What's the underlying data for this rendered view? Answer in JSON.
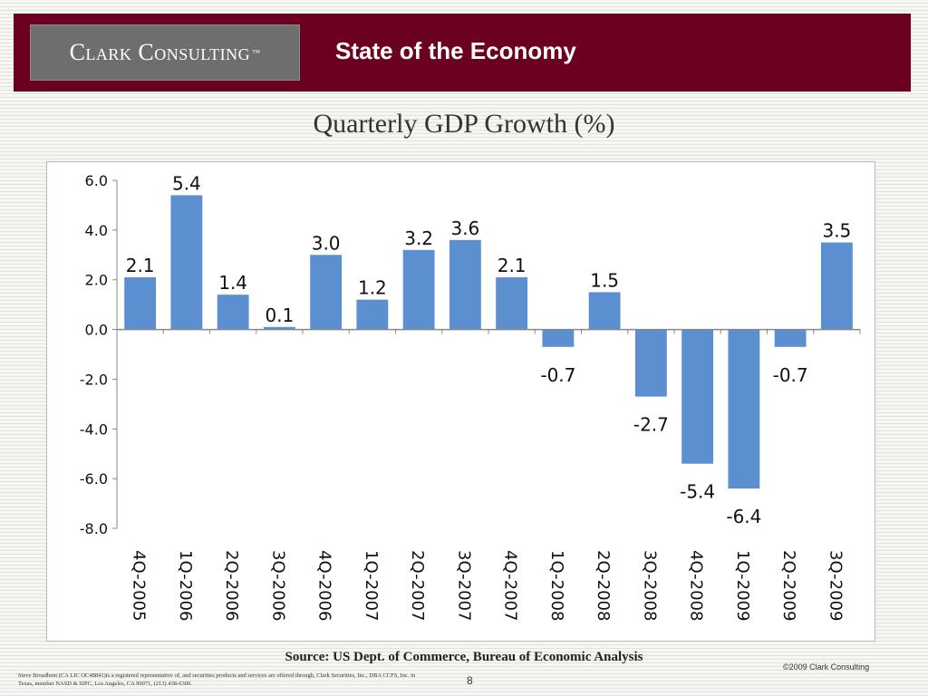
{
  "header": {
    "logo_text": "Clark Consulting",
    "logo_mark": "™",
    "title": "State of the Economy"
  },
  "chart_data": {
    "type": "bar",
    "title": "Quarterly GDP Growth (%)",
    "categories": [
      "4Q-2005",
      "1Q-2006",
      "2Q-2006",
      "3Q-2006",
      "4Q-2006",
      "1Q-2007",
      "2Q-2007",
      "3Q-2007",
      "4Q-2007",
      "1Q-2008",
      "2Q-2008",
      "3Q-2008",
      "4Q-2008",
      "1Q-2009",
      "2Q-2009",
      "3Q-2009"
    ],
    "values": [
      2.1,
      5.4,
      1.4,
      0.1,
      3.0,
      1.2,
      3.2,
      3.6,
      2.1,
      -0.7,
      1.5,
      -2.7,
      -5.4,
      -6.4,
      -0.7,
      3.5
    ],
    "value_labels": [
      "2.1",
      "5.4",
      "1.4",
      "0.1",
      "3.0",
      "1.2",
      "3.2",
      "3.6",
      "2.1",
      "-0.7",
      "1.5",
      "-2.7",
      "-5.4",
      "-6.4",
      "-0.7",
      "3.5"
    ],
    "yticks": [
      "6.0",
      "4.0",
      "2.0",
      "0.0",
      "-2.0",
      "-4.0",
      "-6.0",
      "-8.0"
    ],
    "ylim": [
      -8,
      6
    ],
    "bar_color": "#5b8fd0",
    "grid": false,
    "legend": "none"
  },
  "footer": {
    "source": "Source: US Dept. of Commerce, Bureau of Economic Analysis",
    "copyright": "©2009 Clark Consulting",
    "disclaimer": "Steve Broadbent (CA LIC OC48841)is a registered representative of, and securities products and services are offered through, Clark Securities, Inc., DBA CCFS, Inc. in Texas, member NASD & SIPC, Los Angeles, CA 90071, (213) 438-6300.",
    "page_number": "8"
  }
}
